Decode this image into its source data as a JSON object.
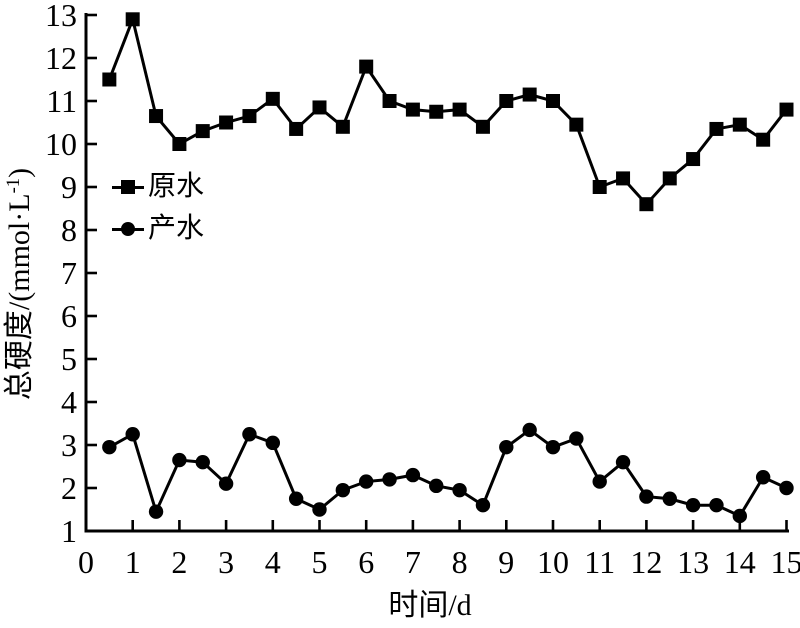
{
  "figure": {
    "background_color": "#ffffff",
    "ink_color": "#000000"
  },
  "chart_data": {
    "type": "line",
    "title": "",
    "xlabel": "时间/d",
    "ylabel": "总硬度/(mmol·L⁻¹)",
    "ylabel_parts": {
      "pre": "总硬度/(mmol·L",
      "sup": "-1",
      "post": ")"
    },
    "xlim": [
      0,
      15
    ],
    "ylim": [
      1,
      13
    ],
    "x_ticks": [
      0,
      1,
      2,
      3,
      4,
      5,
      6,
      7,
      8,
      9,
      10,
      11,
      12,
      13,
      14,
      15
    ],
    "y_ticks": [
      1,
      2,
      3,
      4,
      5,
      6,
      7,
      8,
      9,
      10,
      11,
      12,
      13
    ],
    "grid": false,
    "legend_position": "inside-upper-left",
    "marker_interval_days": 0.5,
    "x": [
      0.5,
      1,
      1.5,
      2,
      2.5,
      3,
      3.5,
      4,
      4.5,
      5,
      5.5,
      6,
      6.5,
      7,
      7.5,
      8,
      8.5,
      9,
      9.5,
      10,
      10.5,
      11,
      11.5,
      12,
      12.5,
      13,
      13.5,
      14,
      14.5,
      15
    ],
    "series": [
      {
        "id": "raw-water",
        "name": "原水",
        "marker": "square",
        "color": "#000000",
        "values": [
          11.5,
          12.9,
          10.65,
          10.0,
          10.3,
          10.5,
          10.65,
          11.05,
          10.35,
          10.85,
          10.4,
          11.8,
          11.0,
          10.8,
          10.75,
          10.8,
          10.4,
          11.0,
          11.15,
          11.0,
          10.45,
          9.0,
          9.2,
          8.6,
          9.2,
          9.65,
          10.35,
          10.45,
          10.1,
          10.8
        ]
      },
      {
        "id": "product-water",
        "name": "产水",
        "marker": "circle",
        "color": "#000000",
        "values": [
          2.95,
          3.25,
          1.45,
          2.65,
          2.6,
          2.1,
          3.25,
          3.05,
          1.75,
          1.5,
          1.95,
          2.15,
          2.2,
          2.3,
          2.05,
          1.95,
          1.6,
          2.95,
          3.35,
          2.95,
          3.15,
          2.15,
          2.6,
          1.8,
          1.75,
          1.6,
          1.6,
          1.35,
          2.25,
          2.0
        ]
      }
    ]
  }
}
